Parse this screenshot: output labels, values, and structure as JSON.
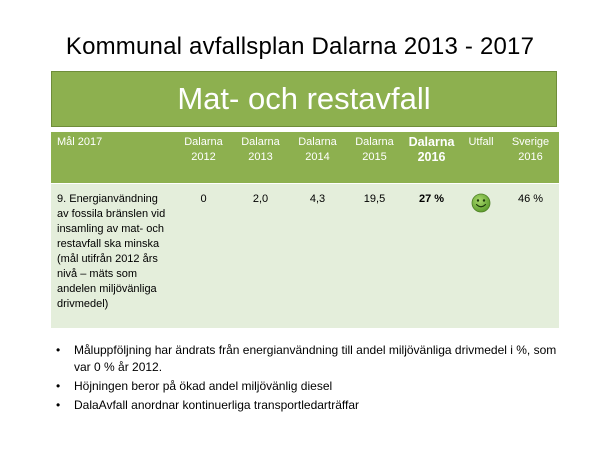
{
  "title": "Kommunal avfallsplan Dalarna 2013 - 2017",
  "banner": "Mat- och restavfall",
  "table": {
    "headers": [
      "Mål 2017",
      "Dalarna 2012",
      "Dalarna 2013",
      "Dalarna 2014",
      "Dalarna 2015",
      "Dalarna 2016",
      "Utfall",
      "Sverige 2016"
    ],
    "row": {
      "goal": "9. Energianvändning av fossila bränslen vid insamling av mat- och restavfall ska minska (mål utifrån 2012 års nivå – mäts som andelen miljövänliga drivmedel)",
      "d2012": "0",
      "d2013": "2,0",
      "d2014": "4,3",
      "d2015": "19,5",
      "d2016": "27 %",
      "outcome_icon": "smiley-face-icon",
      "sverige2016": "46 %"
    }
  },
  "bullets": [
    "Måluppföljning har ändrats från energianvändning till andel miljövänliga drivmedel i %, som var 0 % år 2012.",
    "Höjningen beror på ökad andel miljövänlig diesel",
    "DalaAvfall anordnar kontinuerliga transportledarträffar"
  ],
  "colors": {
    "header_green": "#8db04f",
    "row_green": "#e4eedb",
    "smiley_green": "#7ab648"
  }
}
